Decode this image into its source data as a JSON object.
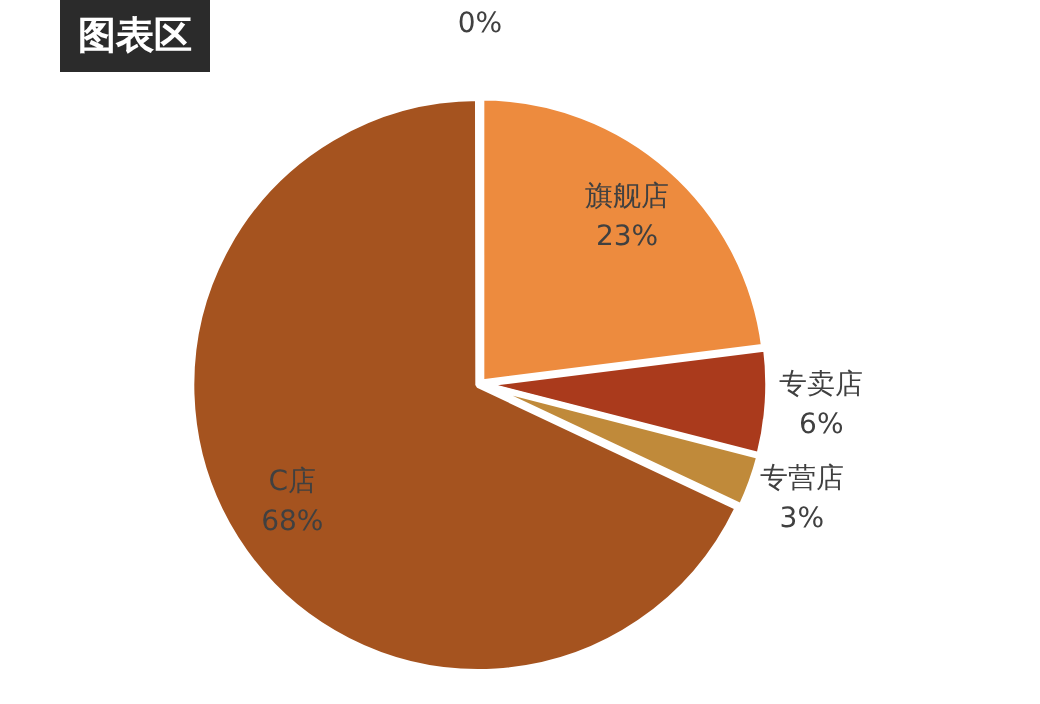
{
  "chart_data": {
    "type": "pie",
    "title": "图表区",
    "categories": [
      null,
      "旗舰店",
      "专卖店",
      "专营店",
      "C店"
    ],
    "values": [
      0,
      23,
      6,
      3,
      68
    ],
    "value_labels": [
      "0%",
      "23%",
      "6%",
      "3%",
      "68%"
    ],
    "colors": [
      "#4a7ebb",
      "#ed8b3e",
      "#aa3a1c",
      "#c08a3a",
      "#a5531f"
    ],
    "legend": false
  }
}
